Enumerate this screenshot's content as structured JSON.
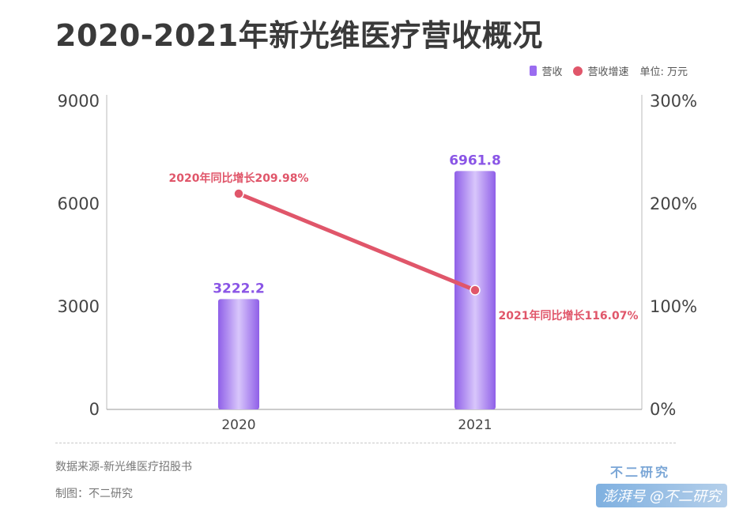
{
  "title": "2020-2021年新光维医疗营收概况",
  "legend": {
    "revenue": "营收",
    "growth": "营收增速",
    "unit": "单位: 万元"
  },
  "chart_data": {
    "type": "bar",
    "categories": [
      "2020",
      "2021"
    ],
    "series": [
      {
        "name": "营收",
        "kind": "bar",
        "axis": "left",
        "color": "#9a6cf0",
        "values": [
          3222.2,
          6961.8
        ],
        "labels": [
          "3222.2",
          "6961.8"
        ]
      },
      {
        "name": "营收增速",
        "kind": "line",
        "axis": "right",
        "color": "#e0566a",
        "values": [
          209.98,
          116.07
        ],
        "labels": [
          "2020年同比增长209.98%",
          "2021年同比增长116.07%"
        ]
      }
    ],
    "y_left": {
      "min": 0,
      "max": 9000,
      "ticks": [
        "0",
        "3000",
        "6000",
        "9000"
      ]
    },
    "y_right": {
      "min": 0,
      "max": 300,
      "ticks": [
        "0%",
        "100%",
        "200%",
        "300%"
      ]
    },
    "grid": false,
    "legend_position": "top-right"
  },
  "footer": {
    "source": "数据来源-新光维医疗招股书",
    "credit": "制图：不二研究"
  },
  "watermark": {
    "logo": "不二研究",
    "platform": "澎湃号 @不二研究"
  }
}
